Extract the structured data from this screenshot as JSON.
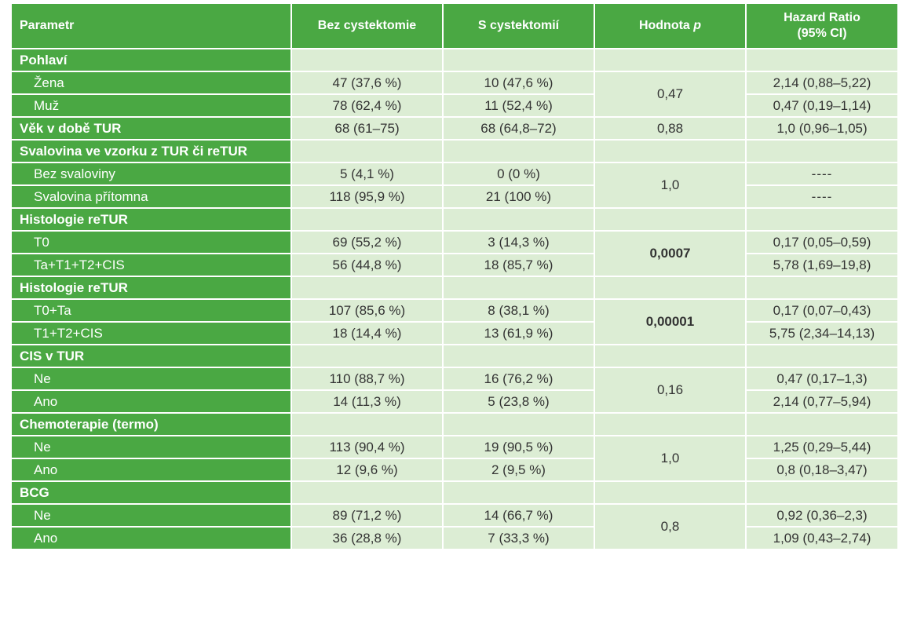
{
  "headers": {
    "param": "Parametr",
    "without": "Bez cystektomie",
    "with": "S cystektomií",
    "p": "Hodnota",
    "p_italic": "p",
    "hr_line1": "Hazard Ratio",
    "hr_line2": "(95% CI)"
  },
  "rows": [
    {
      "label": "Pohlaví"
    },
    {
      "label": "Žena",
      "without": "47 (37,6 %)",
      "with": "10 (47,6 %)",
      "p": "0,47",
      "hr": "2,14 (0,88–5,22)"
    },
    {
      "label": "Muž",
      "without": "78 (62,4 %)",
      "with": "11 (52,4 %)",
      "hr": "0,47 (0,19–1,14)"
    },
    {
      "label": "Věk v době TUR",
      "without": "68 (61–75)",
      "with": "68 (64,8–72)",
      "p": "0,88",
      "hr": "1,0 (0,96–1,05)"
    },
    {
      "label": "Svalovina ve vzorku z TUR či reTUR"
    },
    {
      "label": "Bez svaloviny",
      "without": "5 (4,1 %)",
      "with": "0 (0 %)",
      "p": "1,0",
      "hr": "----"
    },
    {
      "label": "Svalovina přítomna",
      "without": "118 (95,9 %)",
      "with": "21 (100 %)",
      "hr": "----"
    },
    {
      "label": "Histologie reTUR"
    },
    {
      "label": "T0",
      "without": "69 (55,2 %)",
      "with": "3 (14,3 %)",
      "p": "0,0007",
      "hr": "0,17 (0,05–0,59)"
    },
    {
      "label": "Ta+T1+T2+CIS",
      "without": "56 (44,8 %)",
      "with": "18 (85,7 %)",
      "hr": "5,78 (1,69–19,8)"
    },
    {
      "label": "Histologie reTUR"
    },
    {
      "label": "T0+Ta",
      "without": "107 (85,6 %)",
      "with": "8 (38,1 %)",
      "p": "0,00001",
      "hr": "0,17 (0,07–0,43)"
    },
    {
      "label": "T1+T2+CIS",
      "without": "18 (14,4 %)",
      "with": "13 (61,9 %)",
      "hr": "5,75 (2,34–14,13)"
    },
    {
      "label": "CIS v TUR"
    },
    {
      "label": "Ne",
      "without": "110 (88,7 %)",
      "with": "16 (76,2 %)",
      "p": "0,16",
      "hr": "0,47 (0,17–1,3)"
    },
    {
      "label": "Ano",
      "without": "14 (11,3 %)",
      "with": "5 (23,8 %)",
      "hr": "2,14 (0,77–5,94)"
    },
    {
      "label": "Chemoterapie (termo)"
    },
    {
      "label": "Ne",
      "without": "113 (90,4 %)",
      "with": "19 (90,5 %)",
      "p": "1,0",
      "hr": "1,25 (0,29–5,44)"
    },
    {
      "label": "Ano",
      "without": "12 (9,6 %)",
      "with": "2 (9,5 %)",
      "hr": "0,8 (0,18–3,47)"
    },
    {
      "label": "BCG"
    },
    {
      "label": "Ne",
      "without": "89 (71,2 %)",
      "with": "14 (66,7 %)",
      "p": "0,8",
      "hr": "0,92 (0,36–2,3)"
    },
    {
      "label": "Ano",
      "without": "36 (28,8 %)",
      "with": "7 (33,3 %)",
      "hr": "1,09 (0,43–2,74)"
    }
  ]
}
